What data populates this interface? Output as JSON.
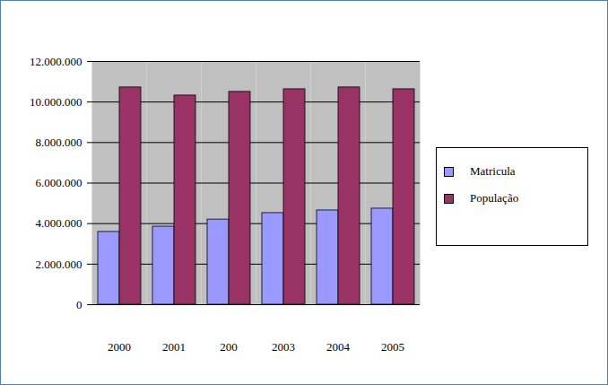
{
  "chart_data": {
    "type": "bar",
    "categories": [
      "2000",
      "2001",
      "200",
      "2003",
      "2004",
      "2005"
    ],
    "series": [
      {
        "name": "Matricula",
        "color": "#9999ff",
        "values": [
          3590000,
          3850000,
          4200000,
          4520000,
          4650000,
          4740000
        ]
      },
      {
        "name": "População",
        "color": "#993366",
        "values": [
          10720000,
          10320000,
          10500000,
          10630000,
          10720000,
          10630000
        ]
      }
    ],
    "ylim": [
      0,
      12000000
    ],
    "yticks": [
      0,
      {
        "value": 2000000,
        "label": "2.000.000"
      },
      {
        "value": 4000000,
        "label": "4.000.000"
      },
      {
        "value": 6000000,
        "label": "6.000.000"
      },
      {
        "value": 8000000,
        "label": "8.000.000"
      },
      {
        "value": 10000000,
        "label": "10.000.000"
      },
      {
        "value": 12000000,
        "label": "12.000.000"
      }
    ],
    "grid": true,
    "legend": "right"
  }
}
